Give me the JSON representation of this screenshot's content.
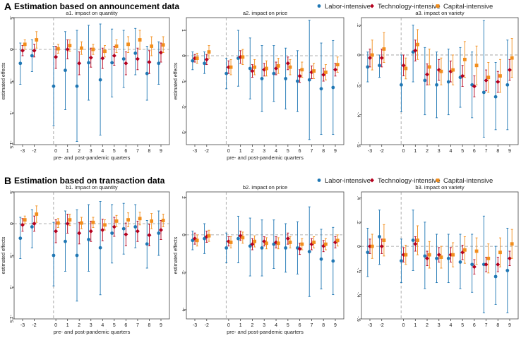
{
  "sections": [
    {
      "letter": "A",
      "title": "Estimation based on announcement data"
    },
    {
      "letter": "B",
      "title": "Estimation based on transaction data"
    }
  ],
  "legend": [
    {
      "name": "Labor-intensive",
      "color": "#1f77b4",
      "marker": "circle"
    },
    {
      "name": "Technology-intensive",
      "color": "#b5001e",
      "marker": "diamond"
    },
    {
      "name": "Capital-intensive",
      "color": "#f28e1c",
      "marker": "square"
    }
  ],
  "chart_data": [
    {
      "id": "a1",
      "type": "scatter",
      "title": "a1. impact on quantity",
      "xlabel": "pre- and post-pandemic quarters",
      "ylabel": "estimated effects",
      "categories": [
        "-3",
        "-2",
        "0",
        "1",
        "2",
        "3",
        "4",
        "5",
        "6",
        "7",
        "8",
        "9"
      ],
      "ylim": [
        -1.5,
        0.5
      ],
      "yticks": [
        0.5,
        0,
        -0.5,
        -1,
        -1.5
      ],
      "ytick_labels": [
        ".5",
        "0",
        "-.5",
        "-1",
        "-1.5"
      ],
      "series": [
        {
          "name": "Labor-intensive",
          "values": [
            -0.22,
            -0.1,
            -0.58,
            -0.33,
            -0.58,
            -0.21,
            -0.48,
            -0.21,
            -0.15,
            -0.06,
            -0.38,
            -0.22
          ],
          "lower": [
            -0.55,
            -0.35,
            -1.2,
            -0.95,
            -1.45,
            -0.8,
            -1.35,
            -0.75,
            -0.6,
            -0.4,
            -0.8,
            -0.55
          ],
          "upper": [
            0.1,
            0.15,
            0.05,
            0.28,
            0.3,
            0.38,
            0.4,
            0.32,
            0.3,
            0.33,
            0.05,
            0.12
          ]
        },
        {
          "name": "Technology-intensive",
          "values": [
            -0.02,
            -0.02,
            -0.12,
            0.0,
            -0.22,
            -0.13,
            -0.14,
            -0.1,
            -0.22,
            -0.15,
            -0.2,
            -0.05
          ],
          "lower": [
            -0.1,
            -0.12,
            -0.3,
            -0.15,
            -0.4,
            -0.28,
            -0.3,
            -0.25,
            -0.4,
            -0.32,
            -0.38,
            -0.2
          ],
          "upper": [
            0.06,
            0.08,
            0.05,
            0.15,
            -0.04,
            0.02,
            0.02,
            0.05,
            -0.04,
            0.02,
            -0.02,
            0.1
          ]
        },
        {
          "name": "Capital-intensive",
          "values": [
            0.08,
            0.15,
            0.01,
            0.06,
            0.02,
            0.0,
            -0.03,
            0.05,
            0.08,
            0.15,
            0.05,
            0.07
          ],
          "lower": [
            0.0,
            0.02,
            -0.06,
            -0.03,
            -0.08,
            -0.08,
            -0.12,
            -0.05,
            -0.05,
            0.0,
            -0.1,
            -0.05
          ],
          "upper": [
            0.15,
            0.28,
            0.08,
            0.15,
            0.12,
            0.08,
            0.06,
            0.15,
            0.2,
            0.3,
            0.2,
            0.2
          ]
        }
      ]
    },
    {
      "id": "a2",
      "type": "scatter",
      "title": "a2. impact on price",
      "xlabel": "pre- and post-pandemic quarters",
      "ylabel": "estimated effects",
      "categories": [
        "-3",
        "-2",
        "0",
        "1",
        "2",
        "3",
        "4",
        "5",
        "6",
        "7",
        "8",
        "9"
      ],
      "ylim": [
        -3.5,
        1.5
      ],
      "yticks": [
        1,
        0,
        -1,
        -2,
        -3
      ],
      "ytick_labels": [
        "1",
        "0",
        "-1",
        "-2",
        "-3"
      ],
      "series": [
        {
          "name": "Labor-intensive",
          "values": [
            -0.2,
            -0.3,
            -0.7,
            -0.1,
            -0.5,
            -0.9,
            -0.7,
            -0.9,
            -1.0,
            -0.95,
            -1.3,
            -1.25
          ],
          "lower": [
            -0.55,
            -0.7,
            -1.3,
            -1.2,
            -1.7,
            -2.2,
            -1.8,
            -2.1,
            -2.2,
            -3.3,
            -3.1,
            -3.1
          ],
          "upper": [
            0.15,
            0.15,
            -0.1,
            1.0,
            0.7,
            0.4,
            0.4,
            0.3,
            0.2,
            1.4,
            0.5,
            0.6
          ]
        },
        {
          "name": "Technology-intensive",
          "values": [
            -0.1,
            -0.15,
            -0.45,
            -0.05,
            -0.6,
            -0.55,
            -0.5,
            -0.3,
            -0.8,
            -0.65,
            -0.75,
            -0.55
          ],
          "lower": [
            -0.25,
            -0.35,
            -0.7,
            -0.3,
            -0.85,
            -0.8,
            -0.75,
            -0.55,
            -1.05,
            -0.9,
            -1.0,
            -0.8
          ],
          "upper": [
            0.05,
            0.05,
            -0.2,
            0.2,
            -0.35,
            -0.3,
            -0.25,
            -0.05,
            -0.55,
            -0.4,
            -0.5,
            -0.3
          ]
        },
        {
          "name": "Capital-intensive",
          "values": [
            -0.1,
            0.15,
            -0.45,
            -0.05,
            -0.45,
            -0.5,
            -0.4,
            -0.45,
            -0.55,
            -0.6,
            -0.65,
            -0.35
          ],
          "lower": [
            -0.3,
            -0.1,
            -0.75,
            -0.35,
            -0.75,
            -0.8,
            -0.7,
            -0.75,
            -0.85,
            -0.9,
            -0.95,
            -0.65
          ],
          "upper": [
            0.1,
            0.4,
            -0.15,
            0.25,
            -0.15,
            -0.2,
            -0.1,
            -0.15,
            -0.25,
            -0.3,
            -0.35,
            -0.05
          ]
        }
      ]
    },
    {
      "id": "a3",
      "type": "scatter",
      "title": "a3. impact on variety",
      "xlabel": "",
      "ylabel": "",
      "categories": [
        "-3",
        "-2",
        "0",
        "1",
        "2",
        "3",
        "4",
        "5",
        "6",
        "7",
        "8",
        "9"
      ],
      "ylim": [
        -0.6,
        0.25
      ],
      "yticks": [
        0.2,
        0,
        -0.2,
        -0.4,
        -0.6
      ],
      "ytick_labels": [
        ".2",
        "0",
        "-.2",
        "-.4",
        "-.6"
      ],
      "series": [
        {
          "name": "Labor-intensive",
          "values": [
            -0.08,
            -0.07,
            -0.2,
            0.02,
            -0.17,
            -0.2,
            -0.18,
            -0.15,
            -0.2,
            -0.25,
            -0.28,
            -0.2
          ],
          "lower": [
            -0.18,
            -0.15,
            -0.38,
            -0.18,
            -0.4,
            -0.42,
            -0.4,
            -0.35,
            -0.42,
            -0.55,
            -0.5,
            -0.5
          ],
          "upper": [
            0.02,
            0.0,
            0.0,
            0.2,
            0.05,
            0.02,
            0.04,
            0.05,
            0.02,
            0.23,
            -0.05,
            0.1
          ]
        },
        {
          "name": "Technology-intensive",
          "values": [
            -0.02,
            -0.02,
            -0.07,
            0.03,
            -0.13,
            -0.1,
            -0.11,
            -0.14,
            -0.21,
            -0.17,
            -0.18,
            -0.1
          ],
          "lower": [
            -0.08,
            -0.08,
            -0.14,
            -0.04,
            -0.2,
            -0.17,
            -0.18,
            -0.21,
            -0.28,
            -0.24,
            -0.25,
            -0.17
          ],
          "upper": [
            0.04,
            0.04,
            0.0,
            0.1,
            -0.06,
            -0.03,
            -0.04,
            -0.07,
            -0.14,
            -0.1,
            -0.11,
            -0.03
          ]
        },
        {
          "name": "Capital-intensive",
          "values": [
            0.0,
            0.04,
            -0.09,
            0.07,
            -0.08,
            -0.11,
            -0.1,
            -0.03,
            -0.07,
            -0.15,
            -0.14,
            -0.02
          ],
          "lower": [
            -0.1,
            -0.05,
            -0.16,
            -0.03,
            -0.2,
            -0.2,
            -0.2,
            -0.15,
            -0.2,
            -0.25,
            -0.25,
            -0.15
          ],
          "upper": [
            0.1,
            0.15,
            -0.02,
            0.17,
            0.04,
            -0.02,
            0.0,
            0.09,
            0.06,
            -0.05,
            -0.03,
            0.11
          ]
        }
      ]
    },
    {
      "id": "b1",
      "type": "scatter",
      "title": "b1. impact on quantity",
      "xlabel": "pre- and post-pandemic quarters",
      "ylabel": "estimated effects",
      "categories": [
        "-3",
        "-2",
        "0",
        "1",
        "2",
        "3",
        "4",
        "5",
        "6",
        "7",
        "8",
        "9"
      ],
      "ylim": [
        -1.5,
        0.5
      ],
      "yticks": [
        0.5,
        0,
        -0.5,
        -1,
        -1.5
      ],
      "ytick_labels": [
        ".5",
        "0",
        "-.5",
        "-1",
        "-1.5"
      ],
      "series": [
        {
          "name": "Labor-intensive",
          "values": [
            -0.23,
            -0.05,
            -0.5,
            -0.28,
            -0.5,
            -0.25,
            -0.38,
            -0.15,
            -0.08,
            -0.05,
            -0.32,
            -0.15
          ],
          "lower": [
            -0.55,
            -0.38,
            -0.98,
            -0.75,
            -1.22,
            -0.75,
            -1.12,
            -0.62,
            -0.48,
            -0.38,
            -0.7,
            -0.5
          ],
          "upper": [
            0.1,
            0.22,
            0.02,
            0.2,
            0.22,
            0.3,
            0.35,
            0.3,
            0.32,
            0.3,
            0.05,
            0.2
          ]
        },
        {
          "name": "Technology-intensive",
          "values": [
            -0.02,
            0.0,
            -0.12,
            0.0,
            -0.15,
            -0.12,
            -0.1,
            -0.05,
            -0.17,
            -0.12,
            -0.18,
            -0.1
          ],
          "lower": [
            -0.12,
            -0.12,
            -0.3,
            -0.15,
            -0.32,
            -0.28,
            -0.27,
            -0.2,
            -0.35,
            -0.28,
            -0.35,
            -0.25
          ],
          "upper": [
            0.08,
            0.12,
            0.06,
            0.15,
            0.02,
            0.04,
            0.07,
            0.1,
            0.01,
            0.04,
            -0.01,
            0.05
          ]
        },
        {
          "name": "Capital-intensive",
          "values": [
            0.06,
            0.15,
            0.01,
            0.06,
            0.01,
            0.02,
            -0.02,
            0.04,
            0.06,
            0.08,
            0.04,
            0.05
          ],
          "lower": [
            0.0,
            0.02,
            -0.06,
            -0.03,
            -0.08,
            -0.06,
            -0.1,
            -0.05,
            -0.05,
            -0.02,
            -0.08,
            -0.05
          ],
          "upper": [
            0.12,
            0.28,
            0.08,
            0.15,
            0.1,
            0.1,
            0.06,
            0.13,
            0.17,
            0.18,
            0.16,
            0.15
          ]
        }
      ]
    },
    {
      "id": "b2",
      "type": "scatter",
      "title": "b2. impact on price",
      "xlabel": "pre- and post-pandemic quarters",
      "ylabel": "estimated effects",
      "categories": [
        "-3",
        "-2",
        "0",
        "1",
        "2",
        "3",
        "4",
        "5",
        "6",
        "7",
        "8",
        "9"
      ],
      "ylim": [
        -4.5,
        2.3
      ],
      "yticks": [
        2,
        0,
        -2,
        -4
      ],
      "ytick_labels": [
        "2",
        "0",
        "-2",
        "-4"
      ],
      "series": [
        {
          "name": "Labor-intensive",
          "values": [
            -0.3,
            -0.2,
            -0.7,
            -0.2,
            -0.6,
            -0.7,
            -0.5,
            -0.7,
            -0.7,
            -0.9,
            -1.3,
            -1.4
          ],
          "lower": [
            -0.8,
            -1.0,
            -1.5,
            -1.5,
            -2.2,
            -2.2,
            -1.8,
            -2.0,
            -2.1,
            -3.3,
            -2.9,
            -3.2
          ],
          "upper": [
            0.2,
            0.6,
            0.1,
            1.0,
            0.9,
            0.8,
            0.8,
            0.6,
            0.7,
            1.5,
            0.3,
            0.4
          ]
        },
        {
          "name": "Technology-intensive",
          "values": [
            -0.2,
            -0.1,
            -0.35,
            -0.05,
            -0.5,
            -0.35,
            -0.4,
            -0.2,
            -0.75,
            -0.5,
            -0.6,
            -0.4
          ],
          "lower": [
            -0.5,
            -0.4,
            -0.6,
            -0.3,
            -0.8,
            -0.6,
            -0.7,
            -0.5,
            -1.05,
            -0.8,
            -0.9,
            -0.7
          ],
          "upper": [
            0.1,
            0.2,
            -0.1,
            0.2,
            -0.2,
            -0.1,
            -0.1,
            0.1,
            -0.45,
            -0.2,
            -0.3,
            -0.1
          ]
        },
        {
          "name": "Capital-intensive",
          "values": [
            -0.3,
            -0.05,
            -0.4,
            -0.15,
            -0.35,
            -0.45,
            -0.45,
            -0.4,
            -0.5,
            -0.4,
            -0.5,
            -0.3
          ],
          "lower": [
            -0.6,
            -0.35,
            -0.7,
            -0.45,
            -0.65,
            -0.75,
            -0.75,
            -0.7,
            -0.8,
            -0.7,
            -0.8,
            -0.6
          ],
          "upper": [
            0.0,
            0.25,
            -0.1,
            0.15,
            -0.05,
            -0.15,
            -0.15,
            -0.1,
            -0.2,
            -0.1,
            -0.2,
            0.0
          ]
        }
      ]
    },
    {
      "id": "b3",
      "type": "scatter",
      "title": "b3. impact on variety",
      "xlabel": "",
      "ylabel": "",
      "categories": [
        "-3",
        "-2",
        "0",
        "1",
        "2",
        "3",
        "4",
        "5",
        "6",
        "7",
        "8",
        "9"
      ],
      "ylim": [
        -0.6,
        0.45
      ],
      "yticks": [
        0.4,
        0.2,
        0,
        -0.2,
        -0.4,
        -0.6
      ],
      "ytick_labels": [
        ".4",
        ".2",
        "0",
        "-.2",
        "-.4",
        "-.6"
      ],
      "series": [
        {
          "name": "Labor-intensive",
          "values": [
            -0.05,
            0.08,
            -0.12,
            0.05,
            -0.08,
            -0.1,
            -0.1,
            -0.13,
            -0.15,
            -0.15,
            -0.25,
            -0.2
          ],
          "lower": [
            -0.25,
            -0.15,
            -0.3,
            -0.2,
            -0.35,
            -0.3,
            -0.3,
            -0.35,
            -0.38,
            -0.55,
            -0.48,
            -0.55
          ],
          "upper": [
            0.15,
            0.3,
            0.06,
            0.3,
            0.2,
            0.1,
            0.1,
            0.1,
            0.1,
            0.25,
            0.0,
            0.15
          ]
        },
        {
          "name": "Technology-intensive",
          "values": [
            0.0,
            0.0,
            -0.07,
            0.02,
            -0.1,
            -0.07,
            -0.07,
            -0.05,
            -0.17,
            -0.15,
            -0.15,
            -0.1
          ],
          "lower": [
            -0.06,
            -0.06,
            -0.13,
            -0.04,
            -0.16,
            -0.13,
            -0.13,
            -0.11,
            -0.23,
            -0.21,
            -0.21,
            -0.16
          ],
          "upper": [
            0.06,
            0.06,
            -0.01,
            0.08,
            -0.04,
            -0.01,
            -0.01,
            0.01,
            -0.11,
            -0.09,
            -0.09,
            -0.04
          ]
        },
        {
          "name": "Capital-intensive",
          "values": [
            0.0,
            0.05,
            -0.07,
            0.05,
            -0.07,
            -0.09,
            -0.07,
            -0.03,
            -0.04,
            -0.1,
            -0.05,
            0.02
          ],
          "lower": [
            -0.1,
            -0.08,
            -0.15,
            -0.07,
            -0.18,
            -0.18,
            -0.17,
            -0.14,
            -0.15,
            -0.22,
            -0.17,
            -0.1
          ],
          "upper": [
            0.1,
            0.18,
            0.01,
            0.17,
            0.04,
            0.0,
            0.03,
            0.08,
            0.07,
            0.02,
            0.07,
            0.14
          ]
        }
      ]
    }
  ]
}
